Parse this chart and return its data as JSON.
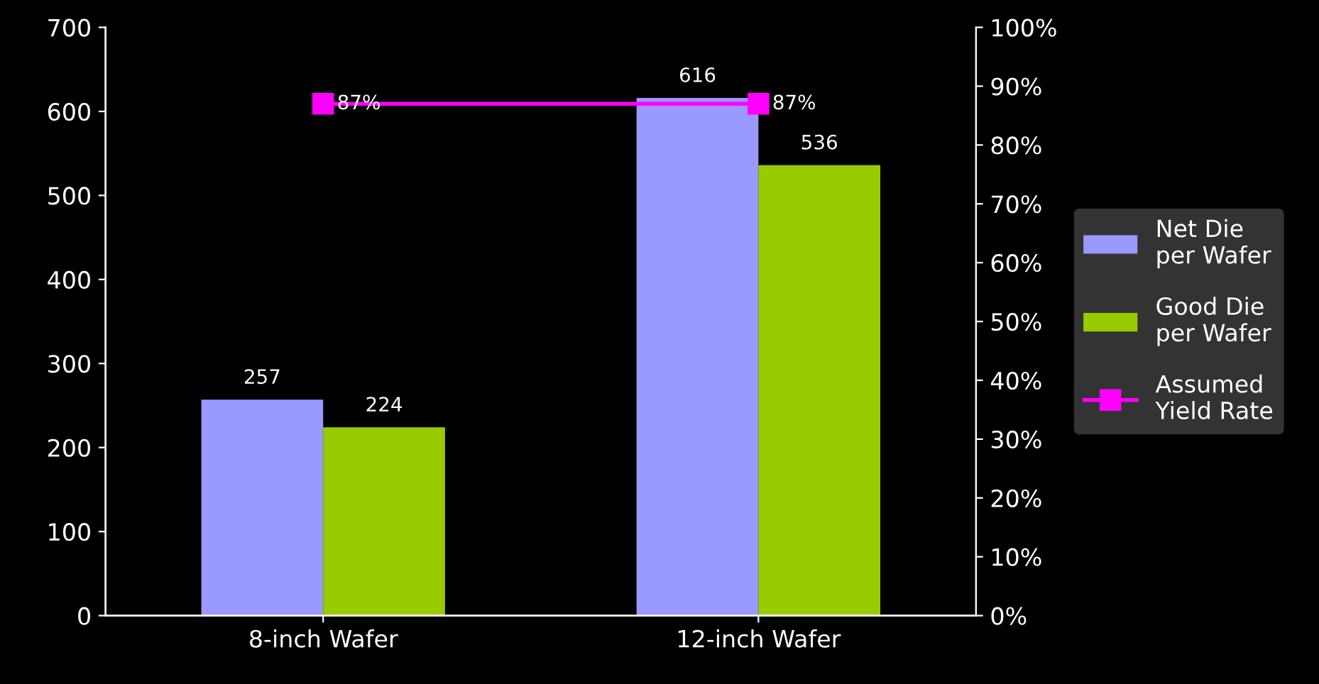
{
  "chart_data": {
    "type": "bar",
    "categories": [
      "8-inch Wafer",
      "12-inch Wafer"
    ],
    "series": [
      {
        "name": "Net Die\nper Wafer",
        "color": "#9999ff",
        "values": [
          257,
          616
        ],
        "value_labels": [
          "257",
          "616"
        ]
      },
      {
        "name": "Good Die\nper Wafer",
        "color": "#99cc00",
        "values": [
          224,
          536
        ],
        "value_labels": [
          "224",
          "536"
        ]
      },
      {
        "name": "Assumed\nYield Rate",
        "type": "line",
        "axis": "y2",
        "color": "#ff00ff",
        "marker": "square",
        "values": [
          87,
          87
        ],
        "value_labels": [
          "87%",
          "87%"
        ]
      }
    ],
    "ylim": [
      0,
      700
    ],
    "yticks": [
      0,
      100,
      200,
      300,
      400,
      500,
      600,
      700
    ],
    "y2lim": [
      0,
      100
    ],
    "y2ticks": [
      {
        "value": 0,
        "label": "0%"
      },
      {
        "value": 10,
        "label": "10%"
      },
      {
        "value": 20,
        "label": "20%"
      },
      {
        "value": 30,
        "label": "30%"
      },
      {
        "value": 40,
        "label": "40%"
      },
      {
        "value": 50,
        "label": "50%"
      },
      {
        "value": 60,
        "label": "60%"
      },
      {
        "value": 70,
        "label": "70%"
      },
      {
        "value": 80,
        "label": "80%"
      },
      {
        "value": 90,
        "label": "90%"
      },
      {
        "value": 100,
        "label": "100%"
      }
    ],
    "grid": false,
    "legend": "right"
  }
}
